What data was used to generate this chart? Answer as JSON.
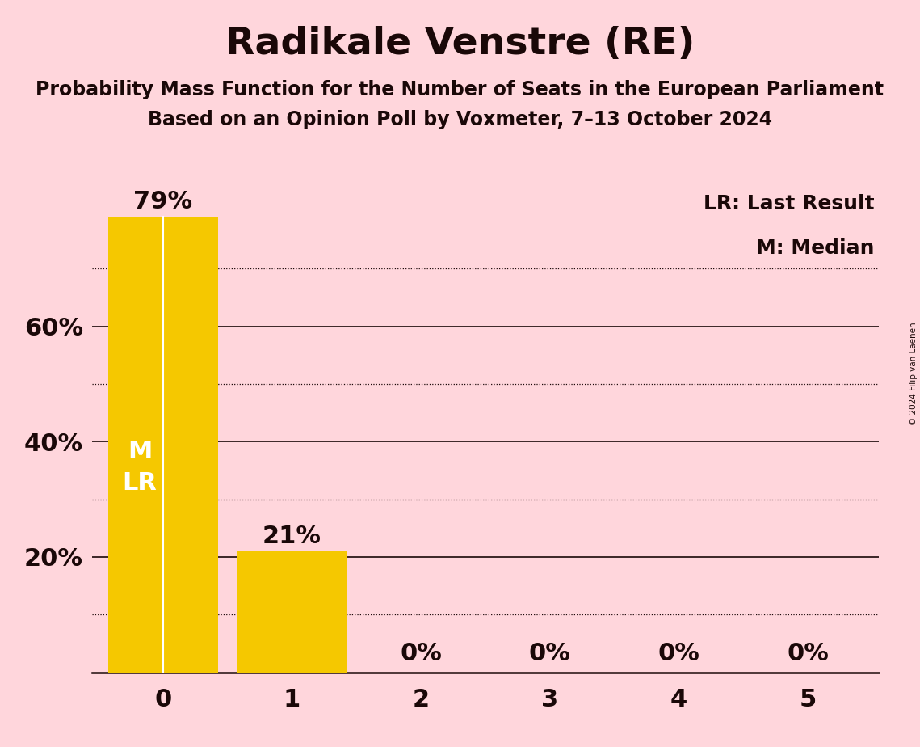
{
  "title": "Radikale Venstre (RE)",
  "subtitle1": "Probability Mass Function for the Number of Seats in the European Parliament",
  "subtitle2": "Based on an Opinion Poll by Voxmeter, 7–13 October 2024",
  "copyright": "© 2024 Filip van Laenen",
  "categories": [
    0,
    1,
    2,
    3,
    4,
    5
  ],
  "values": [
    0.79,
    0.21,
    0.0,
    0.0,
    0.0,
    0.0
  ],
  "value_labels": [
    "79%",
    "21%",
    "0%",
    "0%",
    "0%",
    "0%"
  ],
  "bar_color": "#F5C800",
  "background_color": "#FFD6DC",
  "legend_lr": "LR: Last Result",
  "legend_m": "M: Median",
  "yticks_solid": [
    0.2,
    0.4,
    0.6
  ],
  "yticks_dotted": [
    0.1,
    0.3,
    0.5,
    0.7
  ],
  "ytick_labels": [
    "20%",
    "40%",
    "60%"
  ],
  "ytick_label_positions": [
    0.2,
    0.4,
    0.6
  ],
  "ylim": [
    0,
    0.855
  ],
  "xlim": [
    -0.55,
    5.55
  ],
  "title_fontsize": 34,
  "subtitle_fontsize": 17,
  "axis_label_fontsize": 22,
  "bar_label_fontsize": 22,
  "inside_label_fontsize": 22,
  "legend_fontsize": 18,
  "text_color": "#1a0808"
}
